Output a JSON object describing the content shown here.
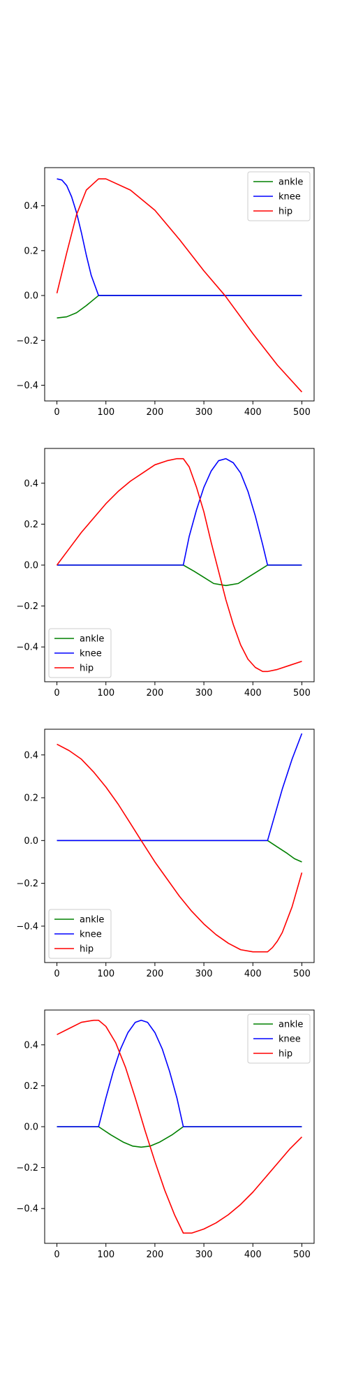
{
  "colors": {
    "ankle": "#008000",
    "knee": "#0000ff",
    "hip": "#ff0000",
    "axes": "#000000",
    "legend_border": "#cccccc"
  },
  "chart_data": [
    {
      "type": "line",
      "title": "",
      "xlabel": "",
      "ylabel": "",
      "xlim": [
        -25,
        525
      ],
      "ylim": [
        -0.47,
        0.57
      ],
      "xticks": [
        0,
        100,
        200,
        300,
        400,
        500
      ],
      "yticks": [
        -0.4,
        -0.2,
        0.0,
        0.2,
        0.4
      ],
      "ytick_labels": [
        "−0.4",
        "−0.2",
        "0.0",
        "0.2",
        "0.4"
      ],
      "grid": false,
      "legend_position": "top-right",
      "series": [
        {
          "name": "ankle",
          "color": "#008000",
          "x": [
            0,
            20,
            40,
            60,
            85,
            500
          ],
          "y": [
            -0.1,
            -0.095,
            -0.077,
            -0.045,
            0.0,
            0.0
          ]
        },
        {
          "name": "knee",
          "color": "#0000ff",
          "x": [
            0,
            10,
            20,
            30,
            40,
            50,
            60,
            70,
            85,
            500
          ],
          "y": [
            0.52,
            0.515,
            0.49,
            0.44,
            0.37,
            0.28,
            0.18,
            0.09,
            0.0,
            0.0
          ]
        },
        {
          "name": "hip",
          "color": "#ff0000",
          "x": [
            0,
            20,
            40,
            60,
            85,
            100,
            150,
            200,
            250,
            300,
            343,
            400,
            450,
            500
          ],
          "y": [
            0.01,
            0.19,
            0.36,
            0.47,
            0.52,
            0.52,
            0.47,
            0.38,
            0.25,
            0.11,
            0.0,
            -0.17,
            -0.31,
            -0.43
          ]
        }
      ]
    },
    {
      "type": "line",
      "title": "",
      "xlabel": "",
      "ylabel": "",
      "xlim": [
        -25,
        525
      ],
      "ylim": [
        -0.57,
        0.57
      ],
      "xticks": [
        0,
        100,
        200,
        300,
        400,
        500
      ],
      "yticks": [
        -0.4,
        -0.2,
        0.0,
        0.2,
        0.4
      ],
      "ytick_labels": [
        "−0.4",
        "−0.2",
        "0.0",
        "0.2",
        "0.4"
      ],
      "grid": false,
      "legend_position": "bottom-left",
      "series": [
        {
          "name": "ankle",
          "color": "#008000",
          "x": [
            0,
            258,
            280,
            300,
            320,
            345,
            370,
            390,
            410,
            430,
            500
          ],
          "y": [
            0.0,
            0.0,
            -0.03,
            -0.06,
            -0.09,
            -0.1,
            -0.09,
            -0.06,
            -0.03,
            0.0,
            0.0
          ]
        },
        {
          "name": "knee",
          "color": "#0000ff",
          "x": [
            0,
            258,
            270,
            285,
            300,
            315,
            330,
            345,
            360,
            375,
            390,
            405,
            420,
            430,
            500
          ],
          "y": [
            0.0,
            0.0,
            0.14,
            0.27,
            0.38,
            0.46,
            0.51,
            0.52,
            0.5,
            0.45,
            0.36,
            0.24,
            0.1,
            0.0,
            0.0
          ]
        },
        {
          "name": "hip",
          "color": "#ff0000",
          "x": [
            0,
            25,
            50,
            75,
            100,
            125,
            150,
            175,
            200,
            225,
            245,
            258,
            270,
            285,
            300,
            315,
            330,
            345,
            360,
            375,
            390,
            405,
            420,
            430,
            450,
            475,
            500
          ],
          "y": [
            0.0,
            0.08,
            0.16,
            0.23,
            0.3,
            0.36,
            0.41,
            0.45,
            0.49,
            0.51,
            0.52,
            0.52,
            0.48,
            0.38,
            0.26,
            0.11,
            -0.03,
            -0.17,
            -0.29,
            -0.39,
            -0.46,
            -0.5,
            -0.52,
            -0.52,
            -0.51,
            -0.49,
            -0.47
          ]
        }
      ]
    },
    {
      "type": "line",
      "title": "",
      "xlabel": "",
      "ylabel": "",
      "xlim": [
        -25,
        525
      ],
      "ylim": [
        -0.57,
        0.52
      ],
      "xticks": [
        0,
        100,
        200,
        300,
        400,
        500
      ],
      "yticks": [
        -0.4,
        -0.2,
        0.0,
        0.2,
        0.4
      ],
      "ytick_labels": [
        "−0.4",
        "−0.2",
        "0.0",
        "0.2",
        "0.4"
      ],
      "grid": false,
      "legend_position": "bottom-left",
      "series": [
        {
          "name": "ankle",
          "color": "#008000",
          "x": [
            0,
            430,
            450,
            470,
            485,
            500
          ],
          "y": [
            0.0,
            0.0,
            -0.03,
            -0.06,
            -0.085,
            -0.1
          ]
        },
        {
          "name": "knee",
          "color": "#0000ff",
          "x": [
            0,
            430,
            440,
            450,
            460,
            470,
            480,
            490,
            500
          ],
          "y": [
            0.0,
            0.0,
            0.08,
            0.16,
            0.24,
            0.31,
            0.38,
            0.44,
            0.5
          ]
        },
        {
          "name": "hip",
          "color": "#ff0000",
          "x": [
            0,
            25,
            50,
            75,
            100,
            125,
            150,
            172,
            200,
            225,
            250,
            275,
            300,
            325,
            350,
            375,
            400,
            420,
            430,
            440,
            450,
            460,
            470,
            480,
            490,
            500
          ],
          "y": [
            0.45,
            0.42,
            0.38,
            0.32,
            0.25,
            0.17,
            0.08,
            0.0,
            -0.1,
            -0.18,
            -0.26,
            -0.33,
            -0.39,
            -0.44,
            -0.48,
            -0.51,
            -0.52,
            -0.52,
            -0.52,
            -0.5,
            -0.47,
            -0.43,
            -0.37,
            -0.31,
            -0.23,
            -0.15
          ]
        }
      ]
    },
    {
      "type": "line",
      "title": "",
      "xlabel": "",
      "ylabel": "",
      "xlim": [
        -25,
        525
      ],
      "ylim": [
        -0.57,
        0.57
      ],
      "xticks": [
        0,
        100,
        200,
        300,
        400,
        500
      ],
      "yticks": [
        -0.4,
        -0.2,
        0.0,
        0.2,
        0.4
      ],
      "ytick_labels": [
        "−0.4",
        "−0.2",
        "0.0",
        "0.2",
        "0.4"
      ],
      "grid": false,
      "legend_position": "top-right",
      "series": [
        {
          "name": "ankle",
          "color": "#008000",
          "x": [
            0,
            85,
            110,
            135,
            155,
            172,
            190,
            210,
            235,
            258,
            500
          ],
          "y": [
            0.0,
            0.0,
            -0.04,
            -0.075,
            -0.095,
            -0.1,
            -0.095,
            -0.075,
            -0.04,
            0.0,
            0.0
          ]
        },
        {
          "name": "knee",
          "color": "#0000ff",
          "x": [
            0,
            85,
            100,
            115,
            130,
            145,
            160,
            172,
            185,
            200,
            215,
            230,
            245,
            258,
            500
          ],
          "y": [
            0.0,
            0.0,
            0.14,
            0.27,
            0.38,
            0.46,
            0.51,
            0.52,
            0.51,
            0.46,
            0.38,
            0.27,
            0.14,
            0.0,
            0.0
          ]
        },
        {
          "name": "hip",
          "color": "#ff0000",
          "x": [
            0,
            25,
            50,
            75,
            85,
            100,
            120,
            140,
            160,
            180,
            200,
            220,
            240,
            258,
            275,
            300,
            325,
            350,
            375,
            400,
            425,
            450,
            475,
            500
          ],
          "y": [
            0.45,
            0.48,
            0.51,
            0.52,
            0.52,
            0.49,
            0.41,
            0.29,
            0.14,
            -0.02,
            -0.17,
            -0.31,
            -0.43,
            -0.52,
            -0.52,
            -0.5,
            -0.47,
            -0.43,
            -0.38,
            -0.32,
            -0.25,
            -0.18,
            -0.11,
            -0.05
          ]
        }
      ]
    }
  ]
}
